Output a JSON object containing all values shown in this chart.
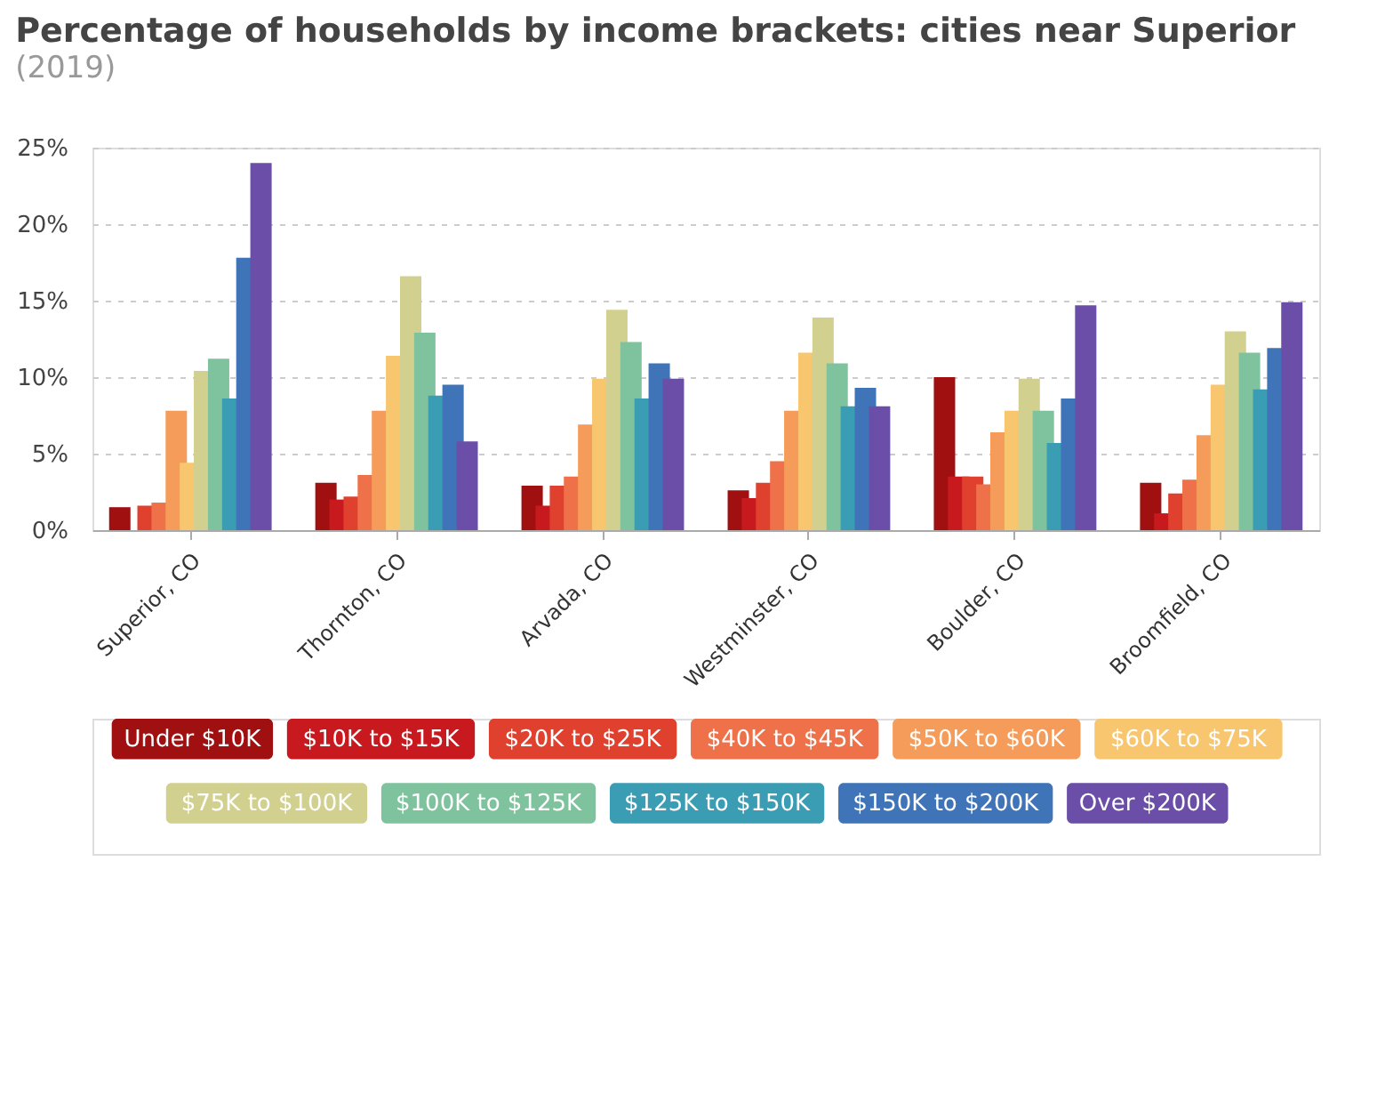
{
  "chart_data": {
    "type": "bar",
    "title": "Percentage of households by income brackets: cities near Superior",
    "subtitle": "(2019)",
    "categories": [
      "Superior, CO",
      "Thornton, CO",
      "Arvada, CO",
      "Westminster, CO",
      "Boulder, CO",
      "Broomfield, CO"
    ],
    "series": [
      {
        "name": "Under $10K",
        "color": "#a01010",
        "values": [
          1.5,
          3.1,
          2.9,
          2.6,
          10.0,
          3.1
        ]
      },
      {
        "name": "$10K to $15K",
        "color": "#c81a1e",
        "values": [
          0,
          2.0,
          1.6,
          2.1,
          3.5,
          1.1
        ]
      },
      {
        "name": "$20K to $25K",
        "color": "#e0402e",
        "values": [
          1.6,
          2.2,
          2.9,
          3.1,
          3.5,
          2.4
        ]
      },
      {
        "name": "$40K to $45K",
        "color": "#ee7149",
        "values": [
          1.8,
          3.6,
          3.5,
          4.5,
          3.0,
          3.3
        ]
      },
      {
        "name": "$50K to $60K",
        "color": "#f69c5a",
        "values": [
          7.8,
          7.8,
          6.9,
          7.8,
          6.4,
          6.2
        ]
      },
      {
        "name": "$60K to $75K",
        "color": "#f7c66f",
        "values": [
          4.4,
          11.4,
          9.9,
          11.6,
          7.8,
          9.5
        ]
      },
      {
        "name": "$75K to $100K",
        "color": "#d2d08e",
        "values": [
          10.4,
          16.6,
          14.4,
          13.9,
          9.9,
          13.0
        ]
      },
      {
        "name": "$100K to $125K",
        "color": "#7fc39e",
        "values": [
          11.2,
          12.9,
          12.3,
          10.9,
          7.8,
          11.6
        ]
      },
      {
        "name": "$125K to $150K",
        "color": "#3b9db3",
        "values": [
          8.6,
          8.8,
          8.6,
          8.1,
          5.7,
          9.2
        ]
      },
      {
        "name": "$150K to $200K",
        "color": "#3f74b8",
        "values": [
          17.8,
          9.5,
          10.9,
          9.3,
          8.6,
          11.9
        ]
      },
      {
        "name": "Over $200K",
        "color": "#6a4ea8",
        "values": [
          24.0,
          5.8,
          9.9,
          8.1,
          14.7,
          14.9
        ]
      }
    ],
    "ylim": [
      0,
      25
    ],
    "yticks": [
      {
        "value": 0,
        "label": "0%"
      },
      {
        "value": 5,
        "label": "5%"
      },
      {
        "value": 10,
        "label": "10%"
      },
      {
        "value": 15,
        "label": "15%"
      },
      {
        "value": 20,
        "label": "20%"
      },
      {
        "value": 25,
        "label": "25%"
      }
    ],
    "grid": "y",
    "legend": "bottom"
  }
}
